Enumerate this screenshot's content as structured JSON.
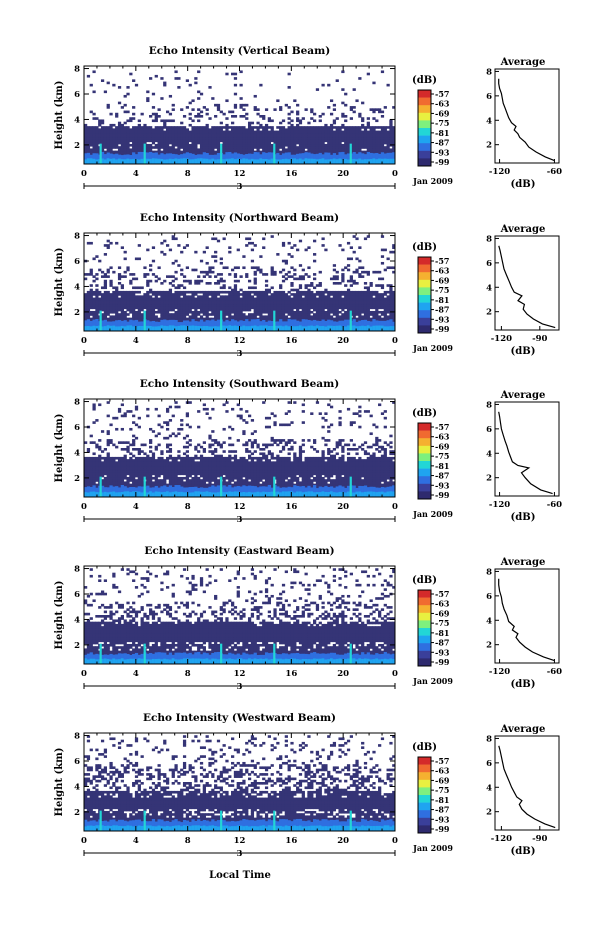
{
  "figure": {
    "xlabel": "Local Time",
    "date_label": "Jan 2009",
    "colorbar_unit": "(dB)",
    "colorbar_ticks": [
      "-57",
      "-63",
      "-69",
      "-75",
      "-81",
      "-87",
      "-93",
      "-99"
    ],
    "colormap": [
      "#2e2a6e",
      "#3a3f9a",
      "#2f6fe0",
      "#1fa4f0",
      "#22d6d6",
      "#7ef07e",
      "#e8f040",
      "#f5b030",
      "#f06a30",
      "#d42a2a"
    ],
    "average_title": "Average",
    "average_xlabel": "(dB)"
  },
  "chart_data": [
    {
      "type": "heatmap",
      "title": "Echo Intensity (Vertical Beam)",
      "ylabel": "Height (km)",
      "x_ticks": [
        "0",
        "4",
        "8",
        "12",
        "16",
        "20",
        "0"
      ],
      "y_ticks": [
        "2",
        "4",
        "6",
        "8"
      ],
      "day_label": "3",
      "xlim": [
        0,
        24
      ],
      "ylim": [
        0.5,
        8.2
      ],
      "layers": {
        "dense_top_km": 3.5,
        "sparse_top_km": 5.2,
        "max_top_km": 7.8
      },
      "average": {
        "title": "Average",
        "xlabel": "(dB)",
        "x_ticks": [
          "-120",
          "-60"
        ],
        "y_ticks": [
          "2",
          "4",
          "6",
          "8"
        ],
        "xlim": [
          -125,
          -55
        ],
        "profile": [
          [
            -60,
            0.7
          ],
          [
            -70,
            1.0
          ],
          [
            -80,
            1.4
          ],
          [
            -88,
            1.8
          ],
          [
            -92,
            2.2
          ],
          [
            -98,
            2.6
          ],
          [
            -100,
            2.9
          ],
          [
            -104,
            3.2
          ],
          [
            -102,
            3.5
          ],
          [
            -107,
            3.8
          ],
          [
            -110,
            4.2
          ],
          [
            -112,
            4.6
          ],
          [
            -114,
            5.0
          ],
          [
            -116,
            5.4
          ],
          [
            -117,
            5.8
          ],
          [
            -118,
            6.2
          ],
          [
            -120,
            6.6
          ],
          [
            -121,
            7.0
          ],
          [
            -121,
            7.4
          ]
        ]
      }
    },
    {
      "type": "heatmap",
      "title": "Echo Intensity (Northward Beam)",
      "ylabel": "Height (km)",
      "x_ticks": [
        "0",
        "4",
        "8",
        "12",
        "16",
        "20",
        "0"
      ],
      "y_ticks": [
        "2",
        "4",
        "6",
        "8"
      ],
      "day_label": "3",
      "xlim": [
        0,
        24
      ],
      "ylim": [
        0.5,
        8.2
      ],
      "layers": {
        "dense_top_km": 3.6,
        "sparse_top_km": 5.6,
        "max_top_km": 8.0
      },
      "average": {
        "title": "Average",
        "xlabel": "(dB)",
        "x_ticks": [
          "-120",
          "-90"
        ],
        "y_ticks": [
          "2",
          "4",
          "6",
          "8"
        ],
        "xlim": [
          -125,
          -75
        ],
        "profile": [
          [
            -78,
            0.7
          ],
          [
            -88,
            1.0
          ],
          [
            -95,
            1.4
          ],
          [
            -100,
            1.8
          ],
          [
            -103,
            2.2
          ],
          [
            -102,
            2.6
          ],
          [
            -107,
            2.9
          ],
          [
            -104,
            3.3
          ],
          [
            -110,
            3.6
          ],
          [
            -112,
            4.0
          ],
          [
            -114,
            4.5
          ],
          [
            -116,
            5.0
          ],
          [
            -118,
            5.5
          ],
          [
            -119,
            6.0
          ],
          [
            -120,
            6.5
          ],
          [
            -121,
            7.0
          ],
          [
            -122,
            7.4
          ]
        ]
      }
    },
    {
      "type": "heatmap",
      "title": "Echo Intensity (Southward Beam)",
      "ylabel": "Height (km)",
      "x_ticks": [
        "0",
        "4",
        "8",
        "12",
        "16",
        "20",
        "0"
      ],
      "y_ticks": [
        "2",
        "4",
        "6",
        "8"
      ],
      "day_label": "3",
      "xlim": [
        0,
        24
      ],
      "ylim": [
        0.5,
        8.2
      ],
      "layers": {
        "dense_top_km": 3.7,
        "sparse_top_km": 5.0,
        "max_top_km": 8.0
      },
      "average": {
        "title": "Average",
        "xlabel": "(dB)",
        "x_ticks": [
          "-120",
          "-60"
        ],
        "y_ticks": [
          "2",
          "4",
          "6",
          "8"
        ],
        "xlim": [
          -125,
          -55
        ],
        "profile": [
          [
            -62,
            0.7
          ],
          [
            -75,
            1.0
          ],
          [
            -86,
            1.5
          ],
          [
            -92,
            2.0
          ],
          [
            -96,
            2.4
          ],
          [
            -88,
            2.8
          ],
          [
            -100,
            3.0
          ],
          [
            -106,
            3.3
          ],
          [
            -108,
            3.7
          ],
          [
            -110,
            4.1
          ],
          [
            -112,
            4.6
          ],
          [
            -114,
            5.0
          ],
          [
            -116,
            5.5
          ],
          [
            -118,
            6.0
          ],
          [
            -119,
            6.5
          ],
          [
            -120,
            7.0
          ],
          [
            -121,
            7.4
          ]
        ]
      }
    },
    {
      "type": "heatmap",
      "title": "Echo Intensity (Eastward Beam)",
      "ylabel": "Height (km)",
      "x_ticks": [
        "0",
        "4",
        "8",
        "12",
        "16",
        "20",
        "0"
      ],
      "y_ticks": [
        "2",
        "4",
        "6",
        "8"
      ],
      "day_label": "3",
      "xlim": [
        0,
        24
      ],
      "ylim": [
        0.5,
        8.2
      ],
      "layers": {
        "dense_top_km": 3.8,
        "sparse_top_km": 5.4,
        "max_top_km": 8.0
      },
      "average": {
        "title": "Average",
        "xlabel": "(dB)",
        "x_ticks": [
          "-120",
          "-60"
        ],
        "y_ticks": [
          "2",
          "4",
          "6",
          "8"
        ],
        "xlim": [
          -125,
          -55
        ],
        "profile": [
          [
            -60,
            0.7
          ],
          [
            -72,
            1.0
          ],
          [
            -84,
            1.4
          ],
          [
            -92,
            1.8
          ],
          [
            -98,
            2.2
          ],
          [
            -102,
            2.6
          ],
          [
            -100,
            2.9
          ],
          [
            -106,
            3.2
          ],
          [
            -104,
            3.5
          ],
          [
            -110,
            3.9
          ],
          [
            -112,
            4.4
          ],
          [
            -115,
            4.9
          ],
          [
            -117,
            5.4
          ],
          [
            -118,
            5.9
          ],
          [
            -120,
            6.4
          ],
          [
            -121,
            6.9
          ],
          [
            -121,
            7.4
          ]
        ]
      }
    },
    {
      "type": "heatmap",
      "title": "Echo Intensity (Westward Beam)",
      "ylabel": "Height (km)",
      "x_ticks": [
        "0",
        "4",
        "8",
        "12",
        "16",
        "20",
        "0"
      ],
      "y_ticks": [
        "2",
        "4",
        "6",
        "8"
      ],
      "day_label": "3",
      "xlim": [
        0,
        24
      ],
      "ylim": [
        0.5,
        8.2
      ],
      "layers": {
        "dense_top_km": 3.6,
        "sparse_top_km": 5.8,
        "max_top_km": 8.0
      },
      "average": {
        "title": "Average",
        "xlabel": "(dB)",
        "x_ticks": [
          "-120",
          "-90"
        ],
        "y_ticks": [
          "2",
          "4",
          "6",
          "8"
        ],
        "xlim": [
          -125,
          -75
        ],
        "profile": [
          [
            -78,
            0.7
          ],
          [
            -86,
            1.0
          ],
          [
            -94,
            1.4
          ],
          [
            -100,
            1.8
          ],
          [
            -104,
            2.2
          ],
          [
            -106,
            2.6
          ],
          [
            -104,
            2.9
          ],
          [
            -108,
            3.2
          ],
          [
            -110,
            3.6
          ],
          [
            -112,
            4.0
          ],
          [
            -114,
            4.5
          ],
          [
            -116,
            5.0
          ],
          [
            -118,
            5.5
          ],
          [
            -119,
            6.0
          ],
          [
            -120,
            6.5
          ],
          [
            -121,
            7.0
          ],
          [
            -122,
            7.4
          ]
        ]
      }
    }
  ]
}
